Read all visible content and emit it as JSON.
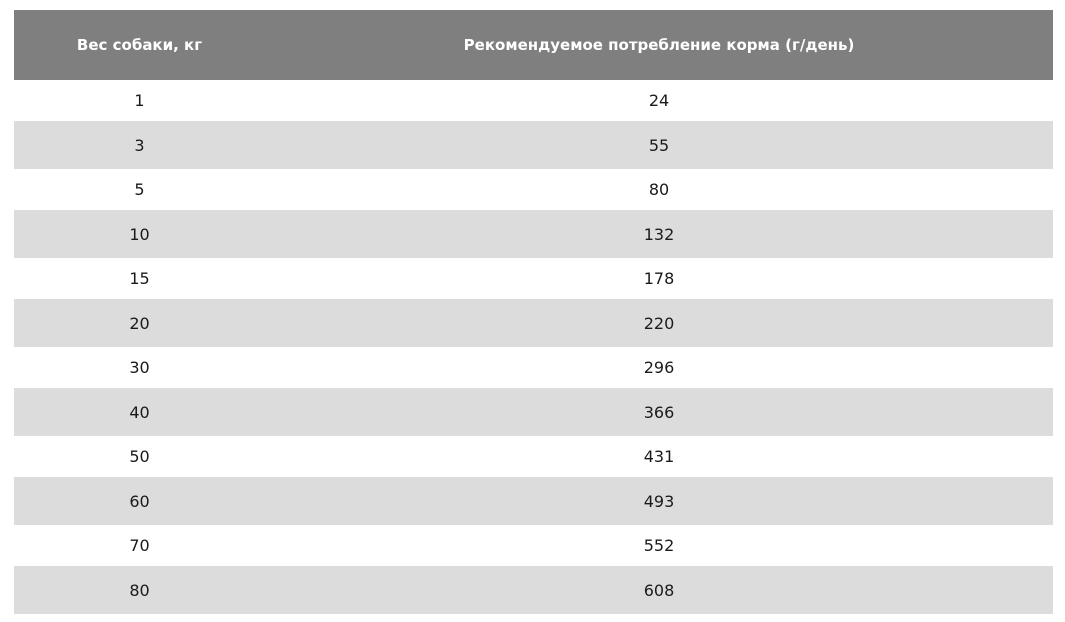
{
  "table": {
    "headers": [
      "Вес собаки, кг",
      "Рекомендуемое потребление корма (г/день)"
    ],
    "rows": [
      [
        "1",
        "24"
      ],
      [
        "3",
        "55"
      ],
      [
        "5",
        "80"
      ],
      [
        "10",
        "132"
      ],
      [
        "15",
        "178"
      ],
      [
        "20",
        "220"
      ],
      [
        "30",
        "296"
      ],
      [
        "40",
        "366"
      ],
      [
        "50",
        "431"
      ],
      [
        "60",
        "493"
      ],
      [
        "70",
        "552"
      ],
      [
        "80",
        "608"
      ]
    ]
  },
  "colors": {
    "header_bg": "#7f7f7f",
    "header_text": "#ffffff",
    "stripe_bg": "#dcdcdc",
    "row_bg": "#ffffff"
  }
}
